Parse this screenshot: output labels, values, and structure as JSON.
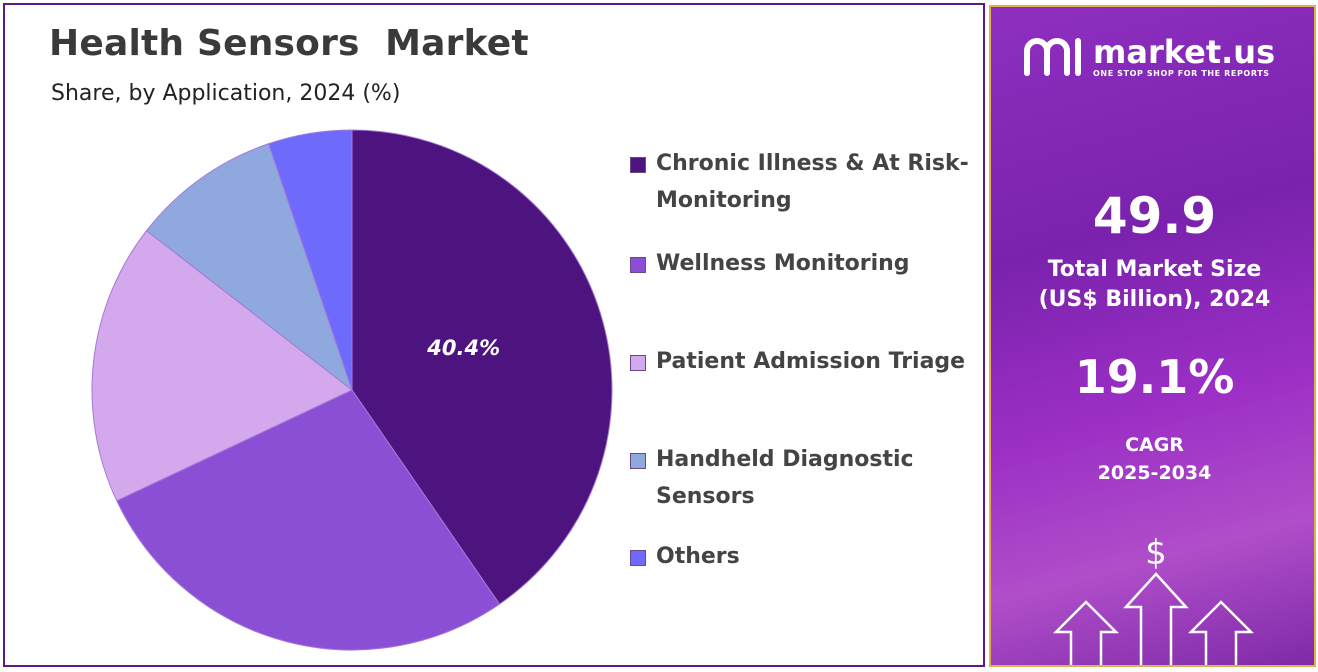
{
  "title": "Health Sensors  Market",
  "subtitle": "Share, by Application, 2024 (%)",
  "chart_data": {
    "type": "pie",
    "title": "Health Sensors  Market",
    "subtitle": "Share, by Application, 2024 (%)",
    "categories": [
      "Chronic Illness & At Risk-Monitoring",
      "Wellness Monitoring",
      "Patient Admission Triage",
      "Handheld Diagnostic Sensors",
      "Others"
    ],
    "values": [
      40.4,
      27.6,
      17.5,
      9.3,
      5.2
    ],
    "colors": [
      "#4d1480",
      "#8a4fd4",
      "#d4a8ec",
      "#8fa8de",
      "#6e6bfc"
    ],
    "data_labels": [
      "40.4%",
      "",
      "",
      "",
      ""
    ],
    "legend_position": "right"
  },
  "legend": [
    {
      "label": "Chronic Illness & At Risk-Monitoring",
      "color": "#4d1480"
    },
    {
      "label": "Wellness Monitoring",
      "color": "#8a4fd4"
    },
    {
      "label": "Patient Admission Triage",
      "color": "#d4a8ec"
    },
    {
      "label": "Handheld Diagnostic Sensors",
      "color": "#8fa8de"
    },
    {
      "label": "Others",
      "color": "#6e6bfc"
    }
  ],
  "sidebar": {
    "logo_name": "market.us",
    "logo_tagline": "ONE STOP SHOP FOR THE REPORTS",
    "market_size_value": "49.9",
    "market_size_label": "Total Market Size (US$ Billion), 2024",
    "cagr_value": "19.1%",
    "cagr_label": "CAGR 2025-2034",
    "currency_symbol": "$",
    "logo_icon": "market-us-logo-icon",
    "arrow_icon": "up-arrow-icon"
  }
}
